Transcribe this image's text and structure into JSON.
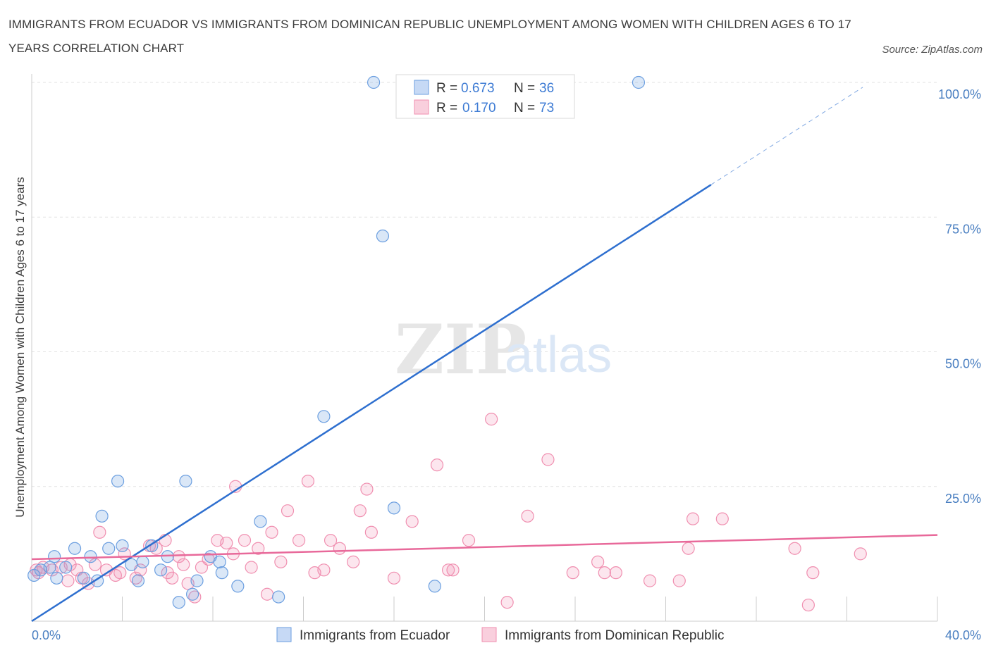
{
  "title": "IMMIGRANTS FROM ECUADOR VS IMMIGRANTS FROM DOMINICAN REPUBLIC UNEMPLOYMENT AMONG WOMEN WITH CHILDREN AGES 6 TO 17 YEARS CORRELATION CHART",
  "source": "Source: ZipAtlas.com",
  "watermark": {
    "zip": "ZIP",
    "atlas": "atlas"
  },
  "colors": {
    "ecuador": "#6c9fe0",
    "ecuador_line": "#2e6fcf",
    "dominican": "#f08fb0",
    "dominican_line": "#e8699a"
  },
  "legend": {
    "r_label": "R = ",
    "n_label": "N = ",
    "rows": [
      {
        "r": "0.673",
        "n": "36"
      },
      {
        "r": "0.170",
        "n": "73"
      }
    ]
  },
  "chart_data": {
    "type": "scatter",
    "title": "IMMIGRANTS FROM ECUADOR VS IMMIGRANTS FROM DOMINICAN REPUBLIC UNEMPLOYMENT AMONG WOMEN WITH CHILDREN AGES 6 TO 17 YEARS CORRELATION CHART",
    "xlabel": "",
    "ylabel": "Unemployment Among Women with Children Ages 6 to 17 years",
    "xlim": [
      0,
      40
    ],
    "ylim": [
      0,
      100
    ],
    "x_tick_labels": [
      "0.0%",
      "40.0%"
    ],
    "y_tick_labels": [
      "25.0%",
      "50.0%",
      "75.0%",
      "100.0%"
    ],
    "y_ticks": [
      25,
      50,
      75,
      100
    ],
    "grid": true,
    "legend_position": "top-center",
    "series": [
      {
        "name": "Immigrants from Ecuador",
        "r": 0.673,
        "n": 36,
        "trend": {
          "x0": 0,
          "y0": 0,
          "x1": 30,
          "y1": 81,
          "dashed_to_x": 36.7
        },
        "points": [
          [
            0.1,
            8.5
          ],
          [
            0.4,
            9.5
          ],
          [
            0.8,
            10.0
          ],
          [
            1.0,
            12.0
          ],
          [
            1.1,
            8.0
          ],
          [
            1.5,
            10.0
          ],
          [
            1.9,
            13.5
          ],
          [
            2.3,
            8.0
          ],
          [
            2.6,
            12.0
          ],
          [
            2.9,
            7.5
          ],
          [
            3.1,
            19.5
          ],
          [
            3.4,
            13.5
          ],
          [
            3.8,
            26.0
          ],
          [
            4.0,
            14.0
          ],
          [
            4.4,
            10.5
          ],
          [
            4.7,
            7.5
          ],
          [
            4.9,
            11.0
          ],
          [
            5.3,
            14.0
          ],
          [
            5.7,
            9.5
          ],
          [
            6.0,
            12.0
          ],
          [
            6.5,
            3.5
          ],
          [
            6.8,
            26.0
          ],
          [
            7.1,
            5.0
          ],
          [
            7.3,
            7.5
          ],
          [
            7.9,
            12.0
          ],
          [
            8.3,
            11.0
          ],
          [
            8.4,
            9.0
          ],
          [
            9.1,
            6.5
          ],
          [
            10.1,
            18.5
          ],
          [
            10.9,
            4.5
          ],
          [
            12.9,
            38.0
          ],
          [
            15.1,
            100.0
          ],
          [
            15.5,
            71.5
          ],
          [
            16.0,
            21.0
          ],
          [
            17.8,
            6.5
          ],
          [
            26.8,
            100.0
          ]
        ]
      },
      {
        "name": "Immigrants from Dominican Republic",
        "r": 0.17,
        "n": 73,
        "trend": {
          "x0": 0,
          "y0": 11.5,
          "x1": 40,
          "y1": 16.0
        },
        "points": [
          [
            0.2,
            9.5
          ],
          [
            0.5,
            10.0
          ],
          [
            0.9,
            9.5
          ],
          [
            1.3,
            10.0
          ],
          [
            1.7,
            10.5
          ],
          [
            2.0,
            9.5
          ],
          [
            2.2,
            8.0
          ],
          [
            2.8,
            10.5
          ],
          [
            3.0,
            16.5
          ],
          [
            3.3,
            9.5
          ],
          [
            3.7,
            8.5
          ],
          [
            4.1,
            12.5
          ],
          [
            4.6,
            8.0
          ],
          [
            4.8,
            9.5
          ],
          [
            5.2,
            14.0
          ],
          [
            5.5,
            13.5
          ],
          [
            5.9,
            15.0
          ],
          [
            6.2,
            8.0
          ],
          [
            6.5,
            12.0
          ],
          [
            6.7,
            10.5
          ],
          [
            6.9,
            7.0
          ],
          [
            7.2,
            4.5
          ],
          [
            7.5,
            10.0
          ],
          [
            7.8,
            11.5
          ],
          [
            8.2,
            15.0
          ],
          [
            8.6,
            14.5
          ],
          [
            9.0,
            25.0
          ],
          [
            9.4,
            15.0
          ],
          [
            9.7,
            10.0
          ],
          [
            10.0,
            13.5
          ],
          [
            10.4,
            5.0
          ],
          [
            10.6,
            16.5
          ],
          [
            11.0,
            11.0
          ],
          [
            11.3,
            20.5
          ],
          [
            11.8,
            15.0
          ],
          [
            12.2,
            26.0
          ],
          [
            12.5,
            9.0
          ],
          [
            12.9,
            9.5
          ],
          [
            13.2,
            15.0
          ],
          [
            13.6,
            13.5
          ],
          [
            14.2,
            11.0
          ],
          [
            14.5,
            20.5
          ],
          [
            14.8,
            24.5
          ],
          [
            15.0,
            16.5
          ],
          [
            16.0,
            8.0
          ],
          [
            16.8,
            18.5
          ],
          [
            17.9,
            29.0
          ],
          [
            18.6,
            9.5
          ],
          [
            19.3,
            15.0
          ],
          [
            20.3,
            37.5
          ],
          [
            21.0,
            3.5
          ],
          [
            21.9,
            19.5
          ],
          [
            22.8,
            30.0
          ],
          [
            23.9,
            9.0
          ],
          [
            25.0,
            11.0
          ],
          [
            25.3,
            9.0
          ],
          [
            25.8,
            9.0
          ],
          [
            27.3,
            7.5
          ],
          [
            28.6,
            7.5
          ],
          [
            29.0,
            13.5
          ],
          [
            29.2,
            19.0
          ],
          [
            30.5,
            19.0
          ],
          [
            33.7,
            13.5
          ],
          [
            34.3,
            3.0
          ],
          [
            34.5,
            9.0
          ],
          [
            36.6,
            12.5
          ],
          [
            0.3,
            9.0
          ],
          [
            1.6,
            7.5
          ],
          [
            2.5,
            7.0
          ],
          [
            3.9,
            9.0
          ],
          [
            6.0,
            9.0
          ],
          [
            8.9,
            12.5
          ],
          [
            18.4,
            9.5
          ]
        ]
      }
    ]
  }
}
